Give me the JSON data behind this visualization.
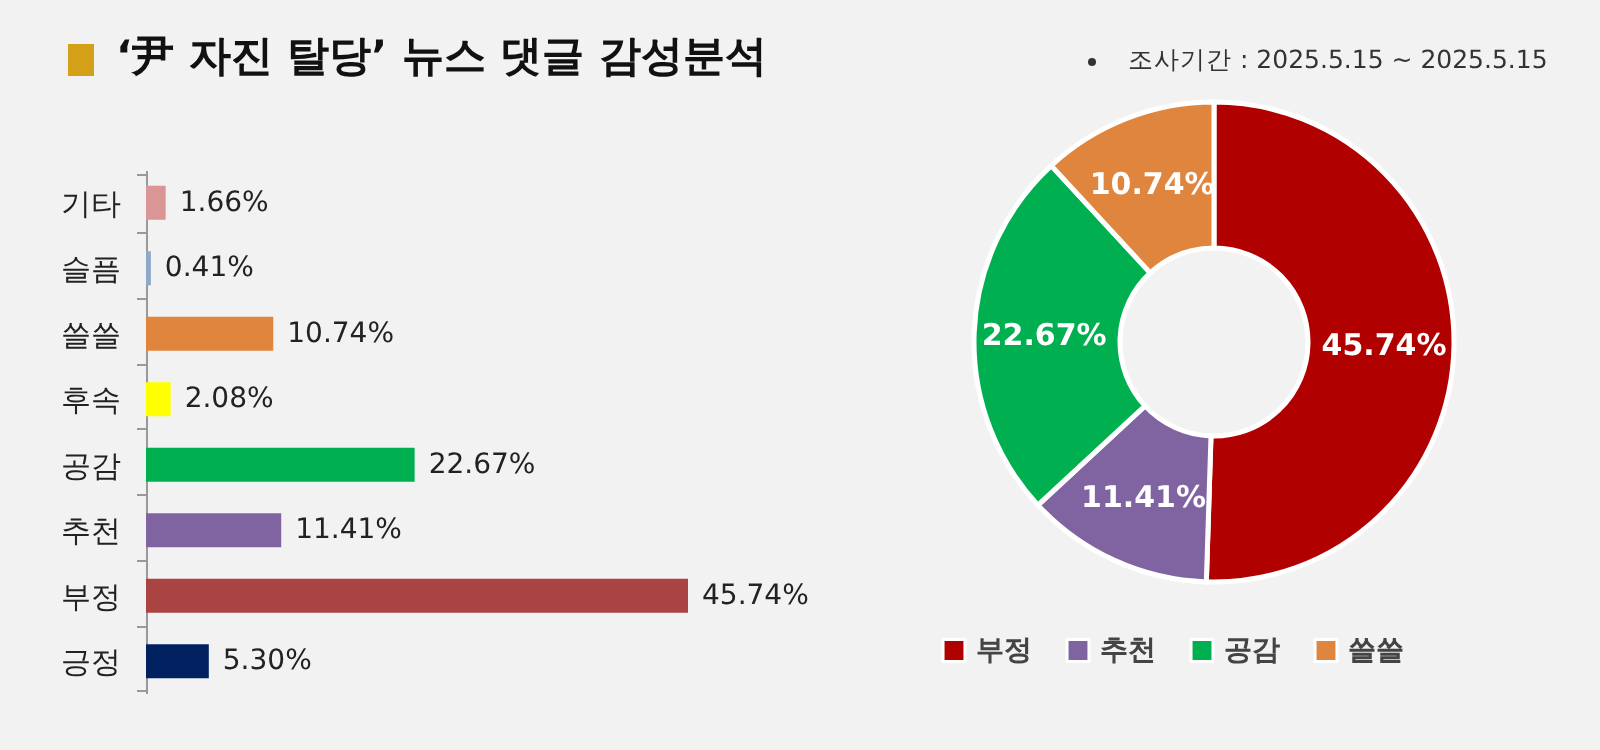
{
  "chart_data": [
    {
      "type": "bar",
      "orientation": "horizontal",
      "title": "‘尹 자진 탈당’ 뉴스 댓글 감성분석",
      "categories": [
        "기타",
        "슬픔",
        "쓸쓸",
        "후속",
        "공감",
        "추천",
        "부정",
        "긍정"
      ],
      "values": [
        1.66,
        0.41,
        10.74,
        2.08,
        22.67,
        11.41,
        45.74,
        5.3
      ],
      "colors": [
        "#d99694",
        "#8ea9c8",
        "#e0853d",
        "#ffff00",
        "#00b050",
        "#8064a2",
        "#a94442",
        "#002060"
      ],
      "value_labels": [
        "1.66%",
        "0.41%",
        "10.74%",
        "2.08%",
        "22.67%",
        "11.41%",
        "45.74%",
        "5.30%"
      ]
    },
    {
      "type": "donut",
      "annotations": [
        "조사기간 : 2025.5.15 ~ 2025.5.15"
      ],
      "categories": [
        "부정",
        "추천",
        "공감",
        "쓸쓸"
      ],
      "values": [
        45.74,
        11.41,
        22.67,
        10.74
      ],
      "colors": [
        "#b00000",
        "#8064a2",
        "#00b050",
        "#e0853d"
      ],
      "value_labels": [
        "45.74%",
        "11.41%",
        "22.67%",
        "10.74%"
      ],
      "legend": "bottom"
    }
  ]
}
